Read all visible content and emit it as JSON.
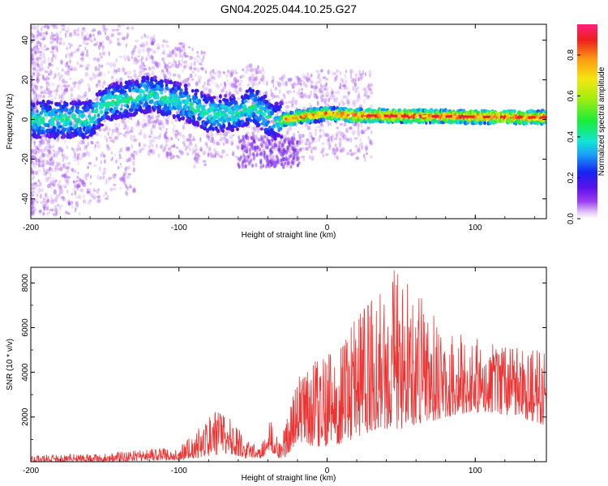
{
  "title": "GN04.2025.044.10.25.G27",
  "chart_data": [
    {
      "type": "heatmap",
      "xlabel": "Height of straight line (km)",
      "ylabel": "Frequency (Hz)",
      "xlim": [
        -200,
        148
      ],
      "ylim": [
        -50,
        48
      ],
      "xticks": [
        -200,
        -100,
        0,
        100
      ],
      "yticks": [
        -40,
        -20,
        0,
        20,
        40
      ],
      "colorbar": {
        "label": "Normalized spectral amplitude",
        "range": [
          0,
          0.95
        ],
        "ticks": [
          "0.0",
          "0.2",
          "0.4",
          "0.6",
          "0.8"
        ],
        "colormap": "rainbow (violet to red)"
      },
      "ridge": [
        {
          "x": -200,
          "freq": 0
        },
        {
          "x": -160,
          "freq": 0
        },
        {
          "x": -150,
          "freq": 8
        },
        {
          "x": -135,
          "freq": 10
        },
        {
          "x": -120,
          "freq": 13
        },
        {
          "x": -110,
          "freq": 11
        },
        {
          "x": -95,
          "freq": 8
        },
        {
          "x": -80,
          "freq": 3
        },
        {
          "x": -60,
          "freq": 3
        },
        {
          "x": -50,
          "freq": 7
        },
        {
          "x": -42,
          "freq": 3
        },
        {
          "x": -35,
          "freq": -1
        },
        {
          "x": -20,
          "freq": 1
        },
        {
          "x": 0,
          "freq": 3
        },
        {
          "x": 20,
          "freq": 2
        },
        {
          "x": 148,
          "freq": 1
        }
      ]
    },
    {
      "type": "line",
      "xlabel": "Height of straight line (km)",
      "ylabel": "SNR (10 * v/v)",
      "xlim": [
        -200,
        148
      ],
      "ylim": [
        0,
        8700
      ],
      "xticks": [
        -200,
        -100,
        0,
        100
      ],
      "yticks": [
        2000,
        4000,
        6000,
        8000
      ],
      "series": [
        {
          "color": "#ee3333",
          "envelope": [
            {
              "x": -200,
              "low": 0,
              "high": 300
            },
            {
              "x": -150,
              "low": 0,
              "high": 400
            },
            {
              "x": -120,
              "low": 50,
              "high": 550
            },
            {
              "x": -100,
              "low": 80,
              "high": 700
            },
            {
              "x": -90,
              "low": 150,
              "high": 1300
            },
            {
              "x": -75,
              "low": 300,
              "high": 2300
            },
            {
              "x": -65,
              "low": 350,
              "high": 2000
            },
            {
              "x": -55,
              "low": 150,
              "high": 1000
            },
            {
              "x": -45,
              "low": 150,
              "high": 700
            },
            {
              "x": -38,
              "low": 500,
              "high": 2100
            },
            {
              "x": -32,
              "low": 100,
              "high": 900
            },
            {
              "x": -28,
              "low": 200,
              "high": 1700
            },
            {
              "x": -20,
              "low": 900,
              "high": 4000
            },
            {
              "x": -10,
              "low": 700,
              "high": 4500
            },
            {
              "x": 0,
              "low": 700,
              "high": 4800
            },
            {
              "x": 10,
              "low": 800,
              "high": 5200
            },
            {
              "x": 20,
              "low": 1100,
              "high": 6800
            },
            {
              "x": 35,
              "low": 1500,
              "high": 7500
            },
            {
              "x": 45,
              "low": 1400,
              "high": 8700
            },
            {
              "x": 60,
              "low": 1600,
              "high": 7600
            },
            {
              "x": 80,
              "low": 2000,
              "high": 6100
            },
            {
              "x": 95,
              "low": 2200,
              "high": 5700
            },
            {
              "x": 110,
              "low": 2200,
              "high": 5300
            },
            {
              "x": 130,
              "low": 2000,
              "high": 5100
            },
            {
              "x": 148,
              "low": 1600,
              "high": 5000
            }
          ]
        }
      ]
    }
  ]
}
